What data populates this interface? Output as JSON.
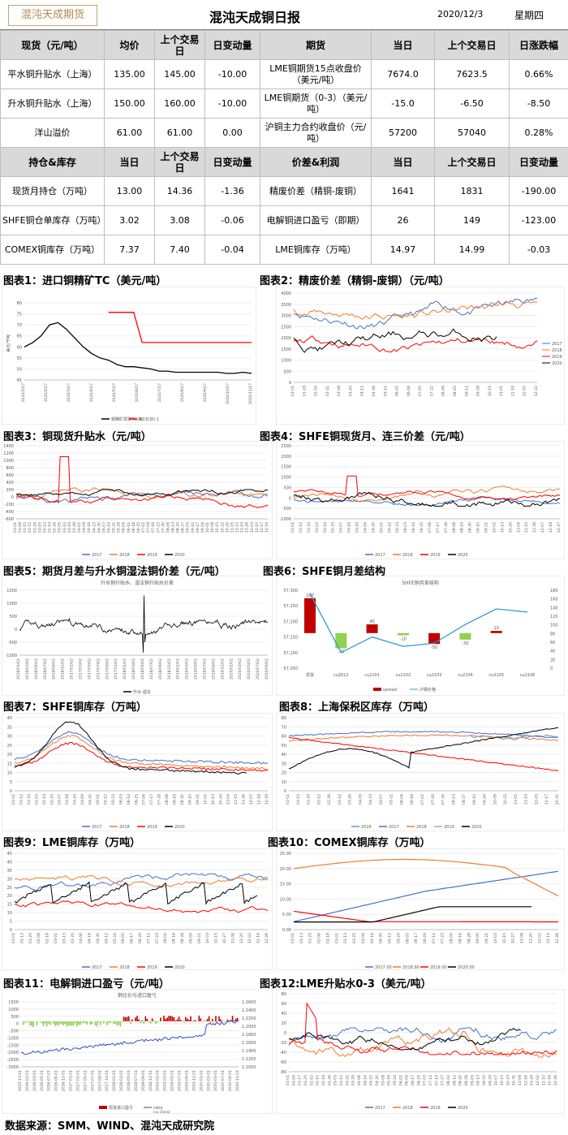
{
  "header": {
    "logo_text": "混沌天成期货",
    "title": "混沌天成铜日报",
    "date": "2020/12/3",
    "weekday": "星期四"
  },
  "table1": {
    "head": [
      "现货（元/吨）",
      "均价",
      "上个交易日",
      "日变动量",
      "期货",
      "当日",
      "上个交易日",
      "日涨跌幅"
    ],
    "rows": [
      [
        "平水铜升贴水（上海）",
        "135.00",
        "145.00",
        "-10.00",
        "LME铜期货15点收盘价（美元/吨）",
        "7674.0",
        "7623.5",
        "0.66%"
      ],
      [
        "升水铜升贴水（上海）",
        "150.00",
        "160.00",
        "-10.00",
        "LME铜期货（0-3）（美元/吨）",
        "-15.0",
        "-6.50",
        "-8.50"
      ],
      [
        "洋山溢价",
        "61.00",
        "61.00",
        "0.00",
        "沪铜主力合约收盘价（元/吨）",
        "57200",
        "57040",
        "0.28%"
      ]
    ]
  },
  "table2": {
    "head": [
      "持仓&库存",
      "当日",
      "上个交易日",
      "日变动量",
      "价差&利润",
      "当日",
      "上个交易日",
      "日变动量"
    ],
    "rows": [
      [
        "现货月持仓（万吨）",
        "13.00",
        "14.36",
        "-1.36",
        "精废价差（精铜-废铜）",
        "1641",
        "1831",
        "-190.00"
      ],
      [
        "SHFE铜仓单库存（万吨）",
        "3.02",
        "3.08",
        "-0.06",
        "电解铜进口盈亏（即期）",
        "26",
        "149",
        "-123.00"
      ],
      [
        "COMEX铜库存（万吨）",
        "7.37",
        "7.40",
        "-0.04",
        "LME铜库存（万吨）",
        "14.97",
        "14.99",
        "-0.03"
      ]
    ]
  },
  "sections": {
    "s1": "图表1：进口铜精矿TC（美元/吨）",
    "s2": "图表2：精废价差（精铜-废铜）（元/吨）",
    "s3": "图表3：铜现货升贴水（元/吨）",
    "s4": "图表4：SHFE铜现货月、连三价差（元/吨）",
    "s5": "图表5：期货月差与升水铜湿法铜价差（元/吨）",
    "s6": "图表6：SHFE铜月差结构",
    "s7": "图表7：SHFE铜库存（万吨）",
    "s8": "图表8：上海保税区库存（万吨）",
    "s9": "图表9：LME铜库存（万吨）",
    "s10": "图表10：COMEX铜库存（万吨）",
    "s11": "图表11：电解铜进口盈亏（元/吨）",
    "s12": "图表12:LME升贴水0-3（美元/吨）"
  },
  "colors": {
    "y2017": "#4472c4",
    "y2018": "#ed7d31",
    "y2019": "#ff0000",
    "y2020": "#000000",
    "y2016": "#5b9bd5",
    "grey": "#a5a5a5",
    "green": "#92d050",
    "darkred": "#c00000"
  },
  "charts": {
    "c1": {
      "type": "line",
      "ylabel": "美元/干吨",
      "yticks": [
        "80",
        "75",
        "70",
        "65",
        "60",
        "55",
        "50",
        "45"
      ],
      "xticks": [
        "2020/1/17",
        "2020/2/17",
        "2020/3/17",
        "2020/4/17",
        "2020/5/17",
        "2020/6/17",
        "2020/7/17",
        "2020/8/17",
        "2020/9/17",
        "2020/10/17",
        "2020/11/17"
      ],
      "legend": [
        "铜精矿现货TC(美)",
        "TC(长协):1"
      ]
    },
    "c2": {
      "type": "line",
      "yticks": [
        "4000",
        "3500",
        "3000",
        "2500",
        "2000",
        "1500",
        "1000",
        "500",
        "0"
      ],
      "xticks": [
        "01-01",
        "01-18",
        "02-04",
        "02-21",
        "03-08",
        "03-25",
        "04-11",
        "04-28",
        "05-15",
        "06-01",
        "06-18",
        "07-05",
        "07-22",
        "08-08",
        "08-25",
        "09-11",
        "09-28",
        "10-15",
        "11-01",
        "11-18",
        "12-05",
        "12-22"
      ],
      "legend": [
        "2017",
        "2018",
        "2019",
        "2020"
      ]
    },
    "c3": {
      "type": "line",
      "yticks": [
        "1400",
        "1200",
        "1000",
        "800",
        "600",
        "400",
        "200",
        "0",
        "-200",
        "-400",
        "-600"
      ],
      "xticks": [
        "01-01",
        "01-08",
        "01-15",
        "01-22",
        "01-29",
        "02-05",
        "02-12",
        "02-19",
        "02-26",
        "03-05",
        "03-12",
        "03-19",
        "03-26",
        "04-02",
        "04-09",
        "04-16",
        "04-23",
        "04-30",
        "05-07",
        "05-14",
        "05-21",
        "05-28",
        "06-04",
        "06-11",
        "06-18",
        "06-25",
        "07-02",
        "07-09",
        "07-16",
        "07-23",
        "07-30",
        "08-06",
        "08-13",
        "08-20",
        "08-27",
        "09-03",
        "09-10",
        "09-17",
        "09-24",
        "10-01",
        "10-08",
        "10-15",
        "10-22",
        "10-29",
        "11-05",
        "11-12",
        "11-19",
        "11-26",
        "12-03",
        "12-10",
        "12-17",
        "12-24"
      ],
      "legend": [
        "2017",
        "2018",
        "2019",
        "2020"
      ]
    },
    "c4": {
      "type": "line",
      "yticks": [
        "2500",
        "2000",
        "1500",
        "1000",
        "500",
        "0",
        "-500",
        "-1000"
      ],
      "xticks": [
        "01-01",
        "01-12",
        "01-23",
        "02-03",
        "02-14",
        "02-25",
        "03-07",
        "03-18",
        "03-29",
        "04-09",
        "04-20",
        "05-01",
        "05-12",
        "05-23",
        "06-03",
        "06-14",
        "06-25",
        "07-06",
        "07-17",
        "07-28",
        "08-08",
        "08-19",
        "08-30",
        "09-10",
        "09-21",
        "10-02",
        "10-13",
        "10-24",
        "11-04",
        "11-15",
        "11-26",
        "12-07",
        "12-18",
        "12-27"
      ],
      "legend": [
        "2017",
        "2018",
        "2019",
        "2020"
      ]
    },
    "c5": {
      "type": "line",
      "title": "升水铜升贴水、湿法铜升贴水价差",
      "yticks": [
        "1500",
        "1000",
        "500",
        "0",
        "-500",
        "-1000"
      ],
      "xticks": [
        "2016/01/02",
        "2016/03/02",
        "2016/05/02",
        "2016/07/02",
        "2016/09/02",
        "2016/11/02",
        "2017/01/02",
        "2017/03/02",
        "2017/05/02",
        "2017/07/02",
        "2017/09/02",
        "2017/11/02",
        "2018/01/02",
        "2018/03/02",
        "2018/05/02",
        "2018/07/02",
        "2018/09/02",
        "2018/11/02",
        "2019/01/02",
        "2019/03/02",
        "2019/05/02",
        "2019/07/02",
        "2019/09/02",
        "2019/11/02",
        "2020/01/02",
        "2020/03/02",
        "2020/05/02",
        "2020/07/02",
        "2020/09/02"
      ],
      "legend": [
        "升水-湿法"
      ]
    },
    "c6": {
      "type": "bar",
      "title": "SHFE铜月差结构",
      "yticks": [
        "57,300",
        "57,250",
        "57,200",
        "57,150",
        "57,100",
        "57,050"
      ],
      "yticks2": [
        "180",
        "160",
        "140",
        "120",
        "100",
        "80",
        "60",
        "40",
        "20",
        "0"
      ],
      "categories": [
        "现货",
        "cu2012",
        "cu2101",
        "cu2102",
        "cu2103",
        "cu2104",
        "cu2105",
        "cu2106"
      ],
      "values": [
        160,
        -70,
        40,
        -10,
        -50,
        -30,
        10,
        null
      ],
      "labels": [
        "160",
        "-70",
        "40",
        "-10",
        "-50",
        "-30",
        "10",
        ""
      ],
      "line": [
        57290,
        57100,
        57150,
        57120,
        57130,
        57190,
        57240,
        57230
      ],
      "legend": [
        "spread",
        "沪铜价格"
      ]
    },
    "c7": {
      "type": "line",
      "yticks": [
        "40",
        "35",
        "30",
        "25",
        "20",
        "15",
        "10",
        "5",
        "0"
      ],
      "xticks": [
        "01-01",
        "01-12",
        "01-23",
        "02-03",
        "02-14",
        "02-25",
        "03-07",
        "03-18",
        "03-29",
        "04-09",
        "04-20",
        "05-01",
        "05-12",
        "05-23",
        "06-03",
        "06-14",
        "06-25",
        "07-06",
        "07-17",
        "07-28",
        "08-08",
        "08-19",
        "08-30",
        "09-10",
        "09-21",
        "10-02",
        "10-13",
        "10-24",
        "11-04",
        "11-15",
        "11-26",
        "12-07",
        "12-18",
        "12-29"
      ],
      "legend": [
        "2017",
        "2018",
        "2019",
        "2020"
      ]
    },
    "c8": {
      "type": "line",
      "yticks": [
        "80",
        "70",
        "60",
        "50",
        "40",
        "30",
        "20",
        "10",
        "0"
      ],
      "xticks": [
        "01-01",
        "01-15",
        "01-29",
        "02-12",
        "02-26",
        "03-12",
        "03-26",
        "04-09",
        "04-23",
        "05-07",
        "05-21",
        "06-04",
        "06-18",
        "07-02",
        "07-16",
        "07-30",
        "08-13",
        "08-27",
        "09-10",
        "09-24",
        "10-08",
        "10-22",
        "11-05",
        "11-19",
        "12-03",
        "12-17",
        "12-31"
      ],
      "legend": [
        "2016",
        "2017",
        "2018",
        "2019",
        "2020"
      ]
    },
    "c9": {
      "type": "line",
      "yticks": [
        "45",
        "40",
        "35",
        "30",
        "25",
        "20",
        "15",
        "10",
        "5",
        "0"
      ],
      "xticks": [
        "01-01",
        "01-13",
        "01-25",
        "02-06",
        "02-18",
        "03-01",
        "03-13",
        "03-25",
        "04-06",
        "04-18",
        "04-30",
        "05-12",
        "05-24",
        "06-05",
        "06-17",
        "06-29",
        "07-11",
        "07-23",
        "08-04",
        "08-16",
        "08-28",
        "09-09",
        "09-21",
        "10-03",
        "10-15",
        "10-27",
        "11-08",
        "11-20",
        "12-02",
        "12-14",
        "12-26"
      ],
      "legend": [
        "2017",
        "2018",
        "2019",
        "2020"
      ]
    },
    "c10": {
      "type": "line",
      "yticks": [
        "25.00",
        "20.00",
        "15.00",
        "10.00",
        "5.00",
        "0.00"
      ],
      "xticks": [
        "01-01",
        "01-13",
        "01-25",
        "02-06",
        "02-18",
        "03-01",
        "03-13",
        "03-25",
        "04-06",
        "04-18",
        "04-30",
        "05-12",
        "05-24",
        "06-05",
        "06-17",
        "06-29",
        "07-11",
        "07-23",
        "08-04",
        "08-16",
        "08-28",
        "09-09",
        "09-21",
        "10-03",
        "10-15",
        "10-27",
        "11-08",
        "11-20",
        "12-02",
        "12-14",
        "12-26"
      ],
      "legend": [
        "2017.00",
        "2018.00",
        "2019.00",
        "2020.00"
      ]
    },
    "c11": {
      "type": "bar-line",
      "title": "铜比价与进口盈亏",
      "yticks": [
        "1500",
        "1000",
        "500",
        "0",
        "-500",
        "-1000",
        "-1500",
        "-2000",
        "-2500",
        "-3000"
      ],
      "yticks2": [
        "1.2600",
        "1.2400",
        "1.2200",
        "1.2000",
        "1.1800",
        "1.1600",
        "1.1400",
        "1.1200",
        "1.1000"
      ],
      "xticks": [
        "2015-11-01",
        "2016-01-01",
        "2016-03-01",
        "2016-05-01",
        "2016-07-01",
        "2016-09-01",
        "2016-11-01",
        "2017-01-01",
        "2017-03-01",
        "2017-05-01",
        "2017-07-01",
        "2017-09-01",
        "2017-11-01",
        "2018-01-01",
        "2018-03-01",
        "2018-05-01",
        "2018-07-01",
        "2018-09-01",
        "2018-11-01",
        "2019-01-01",
        "2019-03-01",
        "2019-05-01",
        "2019-07-01",
        "2019-09-01",
        "2019-11-01",
        "2020-01-01",
        "2020-03-01",
        "2020-05-01",
        "2020-07-01",
        "2020-09-01",
        "2020-11-01"
      ],
      "legend": [
        "现货进口盈亏",
        "ratio\n(cu.China)"
      ]
    },
    "c12": {
      "type": "line",
      "yticks": [
        "80",
        "60",
        "40",
        "20",
        "0",
        "-20",
        "-40",
        "-60",
        "-80"
      ],
      "xticks": [
        "01-01",
        "01-09",
        "01-17",
        "01-25",
        "02-02",
        "02-10",
        "02-18",
        "02-26",
        "03-05",
        "03-13",
        "03-21",
        "03-29",
        "04-06",
        "04-14",
        "04-22",
        "04-30",
        "05-08",
        "05-16",
        "05-24",
        "06-01",
        "06-09",
        "06-17",
        "06-25",
        "07-03",
        "07-11",
        "07-19",
        "07-27",
        "08-04",
        "08-12",
        "08-20",
        "08-28",
        "09-05",
        "09-13",
        "09-21",
        "09-29",
        "10-07",
        "10-15",
        "10-23",
        "10-31",
        "11-08",
        "11-16",
        "11-24",
        "12-02",
        "12-10",
        "12-18",
        "12-26"
      ],
      "legend": [
        "2017",
        "2018",
        "2019",
        "2020"
      ]
    }
  },
  "footer": "数据来源：SMM、WIND、混沌天成研究院"
}
